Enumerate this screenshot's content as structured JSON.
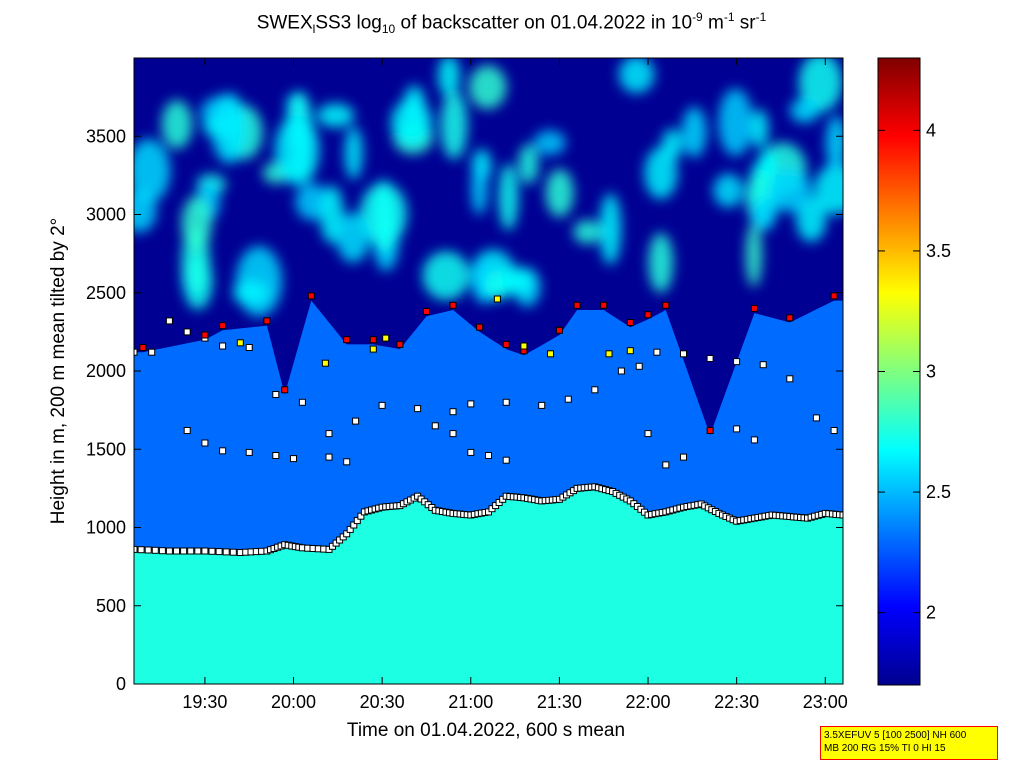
{
  "title": {
    "part1": "SWEX",
    "sub1": "l",
    "part2": "SS3 log",
    "sub2": "10",
    "part3": " of backscatter on 01.04.2022 in 10",
    "sup1": "-9",
    "part4": " m",
    "sup2": "-1",
    "part5": " sr",
    "sup3": "-1"
  },
  "info_box": {
    "line1": "3.5XEFUV 5 [100 2500] NH 600",
    "line2": "MB 200 RG 15% TI 0 HI 15"
  },
  "colors": {
    "low": "#00008f",
    "mid": "#00ffff",
    "high": "#800000",
    "marker_edge": "#000000",
    "marker_white": "#ffffff",
    "marker_red": "#ff0000",
    "marker_yellow": "#ffff00",
    "marker_cyan": "#33ccbb"
  },
  "chart_data": {
    "type": "heatmap",
    "xlabel": "Time on 01.04.2022, 600 s mean",
    "ylabel": "Height in m, 200 m mean tilted by 2°",
    "xlim_hours": [
      19.1,
      23.1
    ],
    "ylim": [
      0,
      4000
    ],
    "x_ticks": [
      {
        "value": 19.5,
        "label": "19:30"
      },
      {
        "value": 20.0,
        "label": "20:00"
      },
      {
        "value": 20.5,
        "label": "20:30"
      },
      {
        "value": 21.0,
        "label": "21:00"
      },
      {
        "value": 21.5,
        "label": "21:30"
      },
      {
        "value": 22.0,
        "label": "22:00"
      },
      {
        "value": 22.5,
        "label": "22:30"
      },
      {
        "value": 23.0,
        "label": "23:00"
      }
    ],
    "y_ticks": [
      0,
      500,
      1000,
      1500,
      2000,
      2500,
      3000,
      3500
    ],
    "colorbar": {
      "range": [
        1.7,
        4.3
      ],
      "ticks": [
        2,
        2.5,
        3,
        3.5,
        4
      ]
    },
    "layer_values": {
      "boundary_layer": 2.75,
      "mixed_layer": 2.3,
      "free_troposphere": 1.75,
      "cloud_patches": 2.55
    },
    "cloud_layers": [
      {
        "name": "layer-1",
        "marker": "white",
        "points": [
          [
            19.1,
            860
          ],
          [
            19.3,
            850
          ],
          [
            19.5,
            850
          ],
          [
            19.7,
            840
          ],
          [
            19.85,
            850
          ],
          [
            19.95,
            890
          ],
          [
            20.05,
            870
          ],
          [
            20.2,
            860
          ],
          [
            20.3,
            960
          ],
          [
            20.4,
            1100
          ],
          [
            20.5,
            1130
          ],
          [
            20.6,
            1140
          ],
          [
            20.7,
            1200
          ],
          [
            20.8,
            1110
          ],
          [
            20.9,
            1090
          ],
          [
            21.0,
            1080
          ],
          [
            21.1,
            1100
          ],
          [
            21.2,
            1200
          ],
          [
            21.3,
            1190
          ],
          [
            21.4,
            1170
          ],
          [
            21.5,
            1180
          ],
          [
            21.6,
            1250
          ],
          [
            21.7,
            1260
          ],
          [
            21.8,
            1230
          ],
          [
            21.9,
            1170
          ],
          [
            22.0,
            1080
          ],
          [
            22.1,
            1100
          ],
          [
            22.2,
            1130
          ],
          [
            22.3,
            1150
          ],
          [
            22.4,
            1090
          ],
          [
            22.5,
            1040
          ],
          [
            22.6,
            1060
          ],
          [
            22.7,
            1080
          ],
          [
            22.8,
            1070
          ],
          [
            22.9,
            1060
          ],
          [
            23.0,
            1090
          ],
          [
            23.1,
            1080
          ]
        ]
      },
      {
        "name": "layer-2",
        "marker": "white",
        "points": [
          [
            19.4,
            1620
          ],
          [
            19.5,
            1540
          ],
          [
            19.6,
            1490
          ],
          [
            19.75,
            1480
          ],
          [
            19.9,
            1460
          ],
          [
            20.0,
            1440
          ],
          [
            20.2,
            1600
          ],
          [
            20.35,
            1680
          ],
          [
            20.5,
            1780
          ],
          [
            20.7,
            1760
          ],
          [
            20.9,
            1740
          ],
          [
            21.0,
            1790
          ],
          [
            21.2,
            1800
          ],
          [
            21.4,
            1780
          ],
          [
            21.55,
            1820
          ],
          [
            21.7,
            1880
          ],
          [
            21.85,
            2000
          ],
          [
            21.95,
            2030
          ],
          [
            22.05,
            2120
          ],
          [
            22.2,
            2110
          ],
          [
            22.35,
            2080
          ],
          [
            22.5,
            2060
          ],
          [
            22.65,
            2040
          ],
          [
            22.8,
            1950
          ]
        ]
      },
      {
        "name": "layer-3",
        "marker": "white",
        "points": [
          [
            19.1,
            2120
          ],
          [
            19.2,
            2120
          ],
          [
            19.3,
            2320
          ],
          [
            19.4,
            2250
          ],
          [
            19.5,
            2210
          ],
          [
            19.6,
            2160
          ],
          [
            19.75,
            2150
          ],
          [
            19.9,
            1850
          ],
          [
            20.05,
            1800
          ],
          [
            20.2,
            1450
          ],
          [
            20.3,
            1420
          ],
          [
            20.8,
            1650
          ],
          [
            20.9,
            1600
          ],
          [
            21.0,
            1480
          ],
          [
            21.1,
            1460
          ],
          [
            21.2,
            1430
          ],
          [
            22.0,
            1600
          ],
          [
            22.1,
            1400
          ],
          [
            22.2,
            1450
          ],
          [
            22.5,
            1630
          ],
          [
            22.6,
            1560
          ],
          [
            22.95,
            1700
          ],
          [
            23.05,
            1620
          ]
        ]
      },
      {
        "name": "layer-4",
        "marker": "red",
        "points": [
          [
            19.15,
            2150
          ],
          [
            19.5,
            2230
          ],
          [
            19.6,
            2290
          ],
          [
            19.85,
            2320
          ],
          [
            19.95,
            1880
          ],
          [
            20.1,
            2480
          ],
          [
            20.3,
            2200
          ],
          [
            20.45,
            2200
          ],
          [
            20.6,
            2170
          ],
          [
            20.75,
            2380
          ],
          [
            20.9,
            2420
          ],
          [
            21.05,
            2280
          ],
          [
            21.2,
            2170
          ],
          [
            21.3,
            2130
          ],
          [
            21.5,
            2260
          ],
          [
            21.6,
            2420
          ],
          [
            21.75,
            2420
          ],
          [
            21.9,
            2310
          ],
          [
            22.0,
            2360
          ],
          [
            22.1,
            2420
          ],
          [
            22.35,
            1620
          ],
          [
            22.6,
            2400
          ],
          [
            22.8,
            2340
          ],
          [
            23.05,
            2480
          ]
        ]
      },
      {
        "name": "layer-5",
        "marker": "yellow",
        "points": [
          [
            19.7,
            2180
          ],
          [
            20.18,
            2050
          ],
          [
            20.45,
            2140
          ],
          [
            20.52,
            2210
          ],
          [
            21.15,
            2460
          ],
          [
            21.3,
            2160
          ],
          [
            21.45,
            2110
          ],
          [
            21.78,
            2110
          ],
          [
            21.9,
            2130
          ]
        ]
      }
    ]
  }
}
